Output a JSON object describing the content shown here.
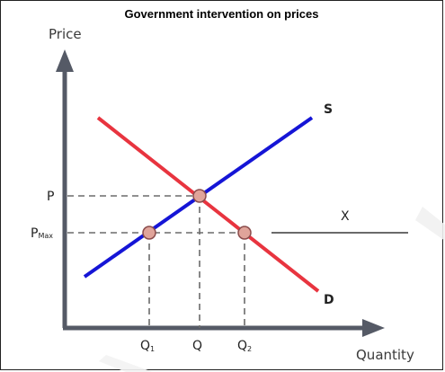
{
  "title": "Government intervention on prices",
  "axes": {
    "y_label": "Price",
    "x_label": "Quantity"
  },
  "ticks": {
    "p": "P",
    "pmax_main": "P",
    "pmax_sub": "Max",
    "q1_main": "Q",
    "q1_sub": "1",
    "q": "Q",
    "q2_main": "Q",
    "q2_sub": "2"
  },
  "curves": {
    "supply": {
      "label": "S",
      "color": "#1515d6"
    },
    "demand": {
      "label": "D",
      "color": "#e8343f"
    }
  },
  "annotation": {
    "label": "X"
  },
  "colors": {
    "axis": "#555a66",
    "guide": "#6b6b6b",
    "point_fill": "#e0a49a",
    "point_stroke": "#a05a55"
  }
}
